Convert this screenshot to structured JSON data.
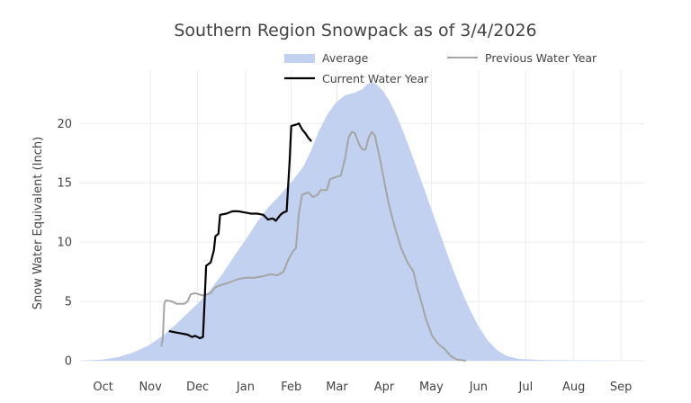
{
  "chart_data": {
    "type": "area",
    "title": "Southern Region Snowpack as of 3/4/2026",
    "xlabel": "",
    "ylabel": "Snow Water Equivalent (Inch)",
    "x_ticks": [
      "Oct",
      "Nov",
      "Dec",
      "Jan",
      "Feb",
      "Mar",
      "Apr",
      "May",
      "Jun",
      "Jul",
      "Aug",
      "Sep"
    ],
    "y_ticks": [
      "0",
      "5",
      "10",
      "15",
      "20"
    ],
    "xlim_days": [
      0,
      365
    ],
    "ylim": [
      0,
      24.5
    ],
    "grid": true,
    "legend_position": "top-right",
    "x_unit": "days from Oct 1",
    "series": [
      {
        "name": "Average",
        "type": "area",
        "color": "#c2d1f0",
        "points": [
          [
            0,
            0
          ],
          [
            15,
            0.1
          ],
          [
            25,
            0.3
          ],
          [
            35,
            0.7
          ],
          [
            45,
            1.3
          ],
          [
            55,
            2.2
          ],
          [
            62,
            3.0
          ],
          [
            70,
            4.0
          ],
          [
            78,
            5.0
          ],
          [
            86,
            6.2
          ],
          [
            93,
            7.4
          ],
          [
            100,
            8.8
          ],
          [
            108,
            10.3
          ],
          [
            115,
            11.7
          ],
          [
            122,
            12.9
          ],
          [
            130,
            14.0
          ],
          [
            138,
            15.2
          ],
          [
            145,
            16.4
          ],
          [
            150,
            17.8
          ],
          [
            155,
            19.4
          ],
          [
            160,
            20.7
          ],
          [
            166,
            21.8
          ],
          [
            172,
            22.4
          ],
          [
            178,
            22.6
          ],
          [
            183,
            22.9
          ],
          [
            186,
            23.3
          ],
          [
            189,
            23.5
          ],
          [
            192,
            23.3
          ],
          [
            196,
            22.8
          ],
          [
            200,
            22.0
          ],
          [
            205,
            20.7
          ],
          [
            210,
            19.1
          ],
          [
            216,
            17.0
          ],
          [
            222,
            14.8
          ],
          [
            228,
            12.6
          ],
          [
            234,
            10.4
          ],
          [
            240,
            8.2
          ],
          [
            246,
            6.2
          ],
          [
            252,
            4.4
          ],
          [
            258,
            2.9
          ],
          [
            264,
            1.7
          ],
          [
            270,
            0.9
          ],
          [
            276,
            0.4
          ],
          [
            284,
            0.15
          ],
          [
            300,
            0.05
          ],
          [
            365,
            0
          ]
        ]
      },
      {
        "name": "Previous Water Year",
        "type": "line",
        "color": "#a5a5a5",
        "points": [
          [
            53,
            1.2
          ],
          [
            54,
            1.8
          ],
          [
            55,
            4.8
          ],
          [
            56,
            5.1
          ],
          [
            60,
            5.0
          ],
          [
            63,
            4.8
          ],
          [
            68,
            4.8
          ],
          [
            70,
            5.0
          ],
          [
            72,
            5.6
          ],
          [
            75,
            5.7
          ],
          [
            80,
            5.5
          ],
          [
            85,
            5.7
          ],
          [
            88,
            6.2
          ],
          [
            92,
            6.4
          ],
          [
            97,
            6.6
          ],
          [
            103,
            6.9
          ],
          [
            108,
            7.0
          ],
          [
            113,
            7.0
          ],
          [
            118,
            7.1
          ],
          [
            124,
            7.3
          ],
          [
            128,
            7.2
          ],
          [
            132,
            7.5
          ],
          [
            135,
            8.5
          ],
          [
            138,
            9.2
          ],
          [
            140,
            9.5
          ],
          [
            142,
            12.5
          ],
          [
            144,
            14.0
          ],
          [
            148,
            14.2
          ],
          [
            151,
            13.8
          ],
          [
            154,
            14.0
          ],
          [
            156,
            14.4
          ],
          [
            160,
            14.4
          ],
          [
            162,
            15.3
          ],
          [
            166,
            15.5
          ],
          [
            169,
            15.6
          ],
          [
            172,
            17.2
          ],
          [
            174,
            18.8
          ],
          [
            176,
            19.3
          ],
          [
            178,
            19.2
          ],
          [
            181,
            18.2
          ],
          [
            183,
            17.8
          ],
          [
            185,
            17.8
          ],
          [
            187,
            18.8
          ],
          [
            189,
            19.3
          ],
          [
            191,
            19.0
          ],
          [
            194,
            17.2
          ],
          [
            197,
            15.2
          ],
          [
            200,
            13.2
          ],
          [
            204,
            11.2
          ],
          [
            208,
            9.5
          ],
          [
            212,
            8.3
          ],
          [
            216,
            7.5
          ],
          [
            218,
            6.3
          ],
          [
            221,
            5.0
          ],
          [
            224,
            3.5
          ],
          [
            228,
            2.1
          ],
          [
            232,
            1.4
          ],
          [
            236,
            1.0
          ],
          [
            240,
            0.4
          ],
          [
            244,
            0.1
          ],
          [
            250,
            0
          ]
        ]
      },
      {
        "name": "Current Water Year",
        "type": "line",
        "color": "#000000",
        "points": [
          [
            58,
            2.5
          ],
          [
            62,
            2.4
          ],
          [
            66,
            2.3
          ],
          [
            70,
            2.2
          ],
          [
            73,
            2.0
          ],
          [
            75,
            2.1
          ],
          [
            78,
            1.9
          ],
          [
            80,
            2.0
          ],
          [
            81,
            5.0
          ],
          [
            82,
            8.0
          ],
          [
            85,
            8.3
          ],
          [
            87,
            9.3
          ],
          [
            88,
            10.5
          ],
          [
            90,
            10.7
          ],
          [
            91,
            12.3
          ],
          [
            95,
            12.4
          ],
          [
            99,
            12.6
          ],
          [
            103,
            12.6
          ],
          [
            107,
            12.5
          ],
          [
            111,
            12.4
          ],
          [
            115,
            12.4
          ],
          [
            119,
            12.3
          ],
          [
            122,
            11.9
          ],
          [
            125,
            12.0
          ],
          [
            127,
            11.8
          ],
          [
            130,
            12.3
          ],
          [
            132,
            12.5
          ],
          [
            134,
            12.6
          ],
          [
            136,
            17.0
          ],
          [
            137,
            19.8
          ],
          [
            140,
            19.9
          ],
          [
            142,
            20.0
          ],
          [
            144,
            19.5
          ],
          [
            146,
            19.2
          ],
          [
            148,
            18.8
          ],
          [
            150,
            18.5
          ]
        ]
      }
    ]
  }
}
